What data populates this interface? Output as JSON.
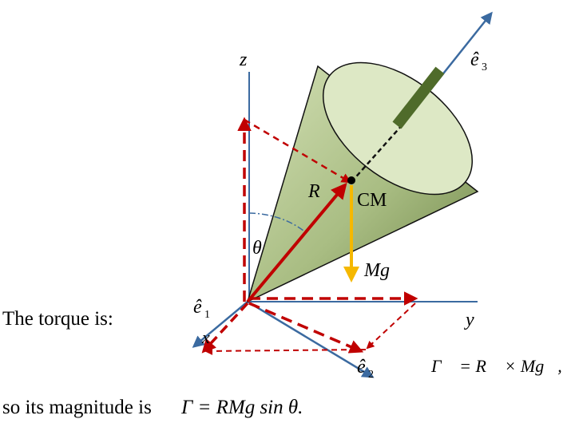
{
  "labels": {
    "z": "z",
    "y": "y",
    "x": "x",
    "e1": "ê",
    "e1_sub": "1",
    "e2": "ê",
    "e2_sub": "2",
    "e3": "ê",
    "e3_sub": "3",
    "R": "R⃗",
    "CM": "CM",
    "theta": "θ",
    "Mg": "Mg⃗"
  },
  "text": {
    "torque_intro": "The torque is:",
    "torque_eq": "Γ⃗ = R⃗ × Mg⃗,",
    "magnitude_prefix": "so its magnitude is",
    "magnitude_eq": "Γ = RMg sin θ."
  },
  "colors": {
    "axis_blue": "#3b6aa0",
    "vector_red": "#c00000",
    "gravity_orange": "#f5b800",
    "cone_green": "#a8bd80",
    "cone_top": "#dde8c5",
    "rod_green": "#4f6b2a"
  }
}
